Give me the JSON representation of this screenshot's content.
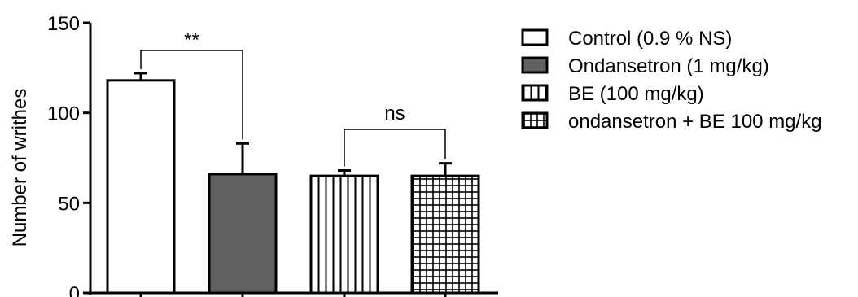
{
  "chart_data": {
    "type": "bar",
    "title": "",
    "xlabel": "",
    "ylabel": "Number of writhes",
    "ylim": [
      0,
      150
    ],
    "yticks": [
      0,
      50,
      100,
      150
    ],
    "grid": false,
    "legend_position": "right",
    "series": [
      {
        "name": "Control (0.9 % NS)",
        "value": 118,
        "error": 4,
        "pattern": "solid",
        "color": "#ffffff"
      },
      {
        "name": "Ondansetron (1 mg/kg)",
        "value": 66,
        "error": 17,
        "pattern": "solid",
        "color": "#606060"
      },
      {
        "name": "BE (100 mg/kg)",
        "value": 65,
        "error": 3,
        "pattern": "vertical-lines",
        "color": "#ffffff"
      },
      {
        "name": "ondansetron + BE 100 mg/kg",
        "value": 65,
        "error": 7,
        "pattern": "grid",
        "color": "#ffffff"
      }
    ],
    "annotations": [
      {
        "label": "**",
        "from": 0,
        "to": 1
      },
      {
        "label": "ns",
        "from": 2,
        "to": 3
      }
    ]
  }
}
